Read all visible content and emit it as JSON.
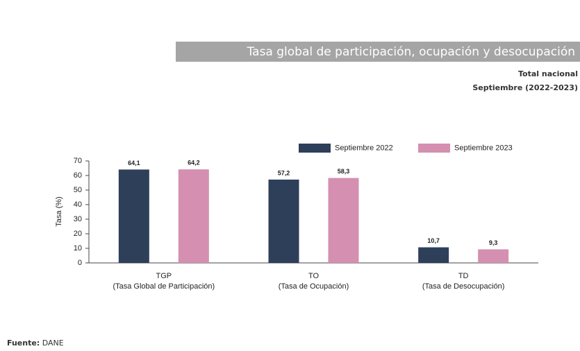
{
  "chart_data": {
    "type": "bar",
    "title": "Tasa global de participación, ocupación y desocupación",
    "subtitle": "Total nacional",
    "period": "Septiembre (2022-2023)",
    "y_label": "Tasa (%)",
    "categories": [
      "TGP",
      "TO",
      "TD"
    ],
    "category_descriptions": [
      "(Tasa Global de Participación)",
      "(Tasa de Ocupación)",
      "(Tasa de Desocupación)"
    ],
    "series": [
      {
        "name": "Septiembre 2022",
        "color": "#2e3f5a",
        "values": [
          64.1,
          57.2,
          10.7
        ],
        "value_labels": [
          "64,1",
          "57,2",
          "10,7"
        ]
      },
      {
        "name": "Septiembre 2023",
        "color": "#d48fb1",
        "values": [
          64.2,
          58.3,
          9.3
        ],
        "value_labels": [
          "64,2",
          "58,3",
          "9,3"
        ]
      }
    ],
    "ylim": [
      0,
      70
    ],
    "yticks": [
      0,
      10,
      20,
      30,
      40,
      50,
      60,
      70
    ],
    "source": {
      "label": "Fuente:",
      "text": "DANE"
    }
  }
}
